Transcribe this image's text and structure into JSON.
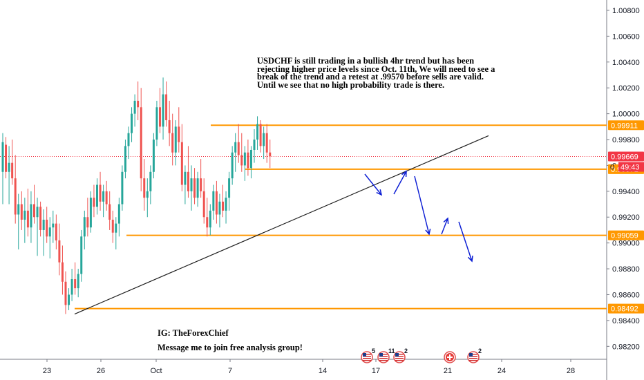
{
  "chart_data": {
    "type": "candlestick",
    "symbol": "USDCHF",
    "y_range": [
      0.981,
      1.0088
    ],
    "price_ticks": [
      "1.00800",
      "1.00600",
      "1.00400",
      "1.00200",
      "1.00000",
      "0.99800",
      "0.99600",
      "0.99400",
      "0.99200",
      "0.99000",
      "0.98800",
      "0.98600",
      "0.98400",
      "0.98200"
    ],
    "x_tick_labels": [
      "23",
      "26",
      "Oct",
      "7",
      "14",
      "17",
      "21",
      "24",
      "28"
    ],
    "horizontal_levels": [
      {
        "label": "0.99911",
        "value": 0.99911,
        "color": "#ff9800"
      },
      {
        "label": "0.99571",
        "value": 0.99571,
        "color": "#ff9800"
      },
      {
        "label": "0.99059",
        "value": 0.99059,
        "color": "#ff9800"
      },
      {
        "label": "0.98492",
        "value": 0.98492,
        "color": "#ff9800"
      }
    ],
    "current_price": {
      "label": "0.99669",
      "value": 0.99669,
      "color": "#f23645"
    },
    "countdown": "49:43",
    "colors": {
      "up": "#26a69a",
      "down": "#ef5350",
      "level": "#ff9800",
      "projection": "#0d1fd4",
      "trendline": "#1f1f1f"
    },
    "candles": [
      {
        "o": 0.9955,
        "h": 0.9985,
        "l": 0.993,
        "c": 0.9978
      },
      {
        "o": 0.9976,
        "h": 0.9982,
        "l": 0.995,
        "c": 0.9955
      },
      {
        "o": 0.9955,
        "h": 0.9975,
        "l": 0.993,
        "c": 0.9962
      },
      {
        "o": 0.9962,
        "h": 0.998,
        "l": 0.9945,
        "c": 0.995
      },
      {
        "o": 0.995,
        "h": 0.9968,
        "l": 0.9915,
        "c": 0.9922
      },
      {
        "o": 0.9922,
        "h": 0.9938,
        "l": 0.9895,
        "c": 0.993
      },
      {
        "o": 0.993,
        "h": 0.994,
        "l": 0.991,
        "c": 0.9918
      },
      {
        "o": 0.9918,
        "h": 0.9935,
        "l": 0.99,
        "c": 0.9925
      },
      {
        "o": 0.9925,
        "h": 0.9942,
        "l": 0.9905,
        "c": 0.9912
      },
      {
        "o": 0.9912,
        "h": 0.994,
        "l": 0.99,
        "c": 0.993
      },
      {
        "o": 0.993,
        "h": 0.9945,
        "l": 0.9915,
        "c": 0.992
      },
      {
        "o": 0.992,
        "h": 0.9935,
        "l": 0.989,
        "c": 0.9928
      },
      {
        "o": 0.9928,
        "h": 0.9932,
        "l": 0.9905,
        "c": 0.991
      },
      {
        "o": 0.991,
        "h": 0.9926,
        "l": 0.989,
        "c": 0.9918
      },
      {
        "o": 0.9918,
        "h": 0.9928,
        "l": 0.99,
        "c": 0.9905
      },
      {
        "o": 0.9905,
        "h": 0.992,
        "l": 0.9888,
        "c": 0.9912
      },
      {
        "o": 0.9912,
        "h": 0.9925,
        "l": 0.99,
        "c": 0.9915
      },
      {
        "o": 0.9915,
        "h": 0.9922,
        "l": 0.9895,
        "c": 0.9902
      },
      {
        "o": 0.9902,
        "h": 0.9915,
        "l": 0.9875,
        "c": 0.9885
      },
      {
        "o": 0.9885,
        "h": 0.9898,
        "l": 0.986,
        "c": 0.987
      },
      {
        "o": 0.987,
        "h": 0.9878,
        "l": 0.9845,
        "c": 0.9852
      },
      {
        "o": 0.9852,
        "h": 0.9865,
        "l": 0.9848,
        "c": 0.986
      },
      {
        "o": 0.986,
        "h": 0.988,
        "l": 0.9855,
        "c": 0.9872
      },
      {
        "o": 0.9872,
        "h": 0.9885,
        "l": 0.986,
        "c": 0.9865
      },
      {
        "o": 0.9865,
        "h": 0.988,
        "l": 0.9858,
        "c": 0.9876
      },
      {
        "o": 0.9876,
        "h": 0.991,
        "l": 0.987,
        "c": 0.9905
      },
      {
        "o": 0.9905,
        "h": 0.9925,
        "l": 0.9895,
        "c": 0.992
      },
      {
        "o": 0.992,
        "h": 0.9935,
        "l": 0.9905,
        "c": 0.9912
      },
      {
        "o": 0.9912,
        "h": 0.994,
        "l": 0.9908,
        "c": 0.9935
      },
      {
        "o": 0.9935,
        "h": 0.9945,
        "l": 0.992,
        "c": 0.9928
      },
      {
        "o": 0.9928,
        "h": 0.995,
        "l": 0.9922,
        "c": 0.9945
      },
      {
        "o": 0.9945,
        "h": 0.9955,
        "l": 0.9925,
        "c": 0.9932
      },
      {
        "o": 0.9932,
        "h": 0.9945,
        "l": 0.992,
        "c": 0.994
      },
      {
        "o": 0.994,
        "h": 0.9948,
        "l": 0.9925,
        "c": 0.993
      },
      {
        "o": 0.993,
        "h": 0.994,
        "l": 0.991,
        "c": 0.9918
      },
      {
        "o": 0.9918,
        "h": 0.9925,
        "l": 0.99,
        "c": 0.9908
      },
      {
        "o": 0.9908,
        "h": 0.992,
        "l": 0.9895,
        "c": 0.9915
      },
      {
        "o": 0.9915,
        "h": 0.9935,
        "l": 0.9905,
        "c": 0.993
      },
      {
        "o": 0.993,
        "h": 0.996,
        "l": 0.9925,
        "c": 0.9955
      },
      {
        "o": 0.9955,
        "h": 0.998,
        "l": 0.995,
        "c": 0.9975
      },
      {
        "o": 0.9975,
        "h": 0.999,
        "l": 0.9965,
        "c": 0.9985
      },
      {
        "o": 0.9985,
        "h": 1.0005,
        "l": 0.9978,
        "c": 1.0
      },
      {
        "o": 1.0,
        "h": 1.0015,
        "l": 0.999,
        "c": 1.001
      },
      {
        "o": 1.001,
        "h": 1.0025,
        "l": 0.9995,
        "c": 1.0005
      },
      {
        "o": 1.0005,
        "h": 1.002,
        "l": 0.994,
        "c": 0.995
      },
      {
        "o": 0.995,
        "h": 0.9965,
        "l": 0.9925,
        "c": 0.9935
      },
      {
        "o": 0.9935,
        "h": 0.995,
        "l": 0.992,
        "c": 0.994
      },
      {
        "o": 0.994,
        "h": 0.996,
        "l": 0.993,
        "c": 0.9955
      },
      {
        "o": 0.9955,
        "h": 0.9985,
        "l": 0.995,
        "c": 0.998
      },
      {
        "o": 0.998,
        "h": 1.001,
        "l": 0.9975,
        "c": 1.0005
      },
      {
        "o": 1.0005,
        "h": 1.002,
        "l": 0.9985,
        "c": 0.999
      },
      {
        "o": 0.999,
        "h": 1.0028,
        "l": 0.998,
        "c": 1.0015
      },
      {
        "o": 1.0015,
        "h": 1.0025,
        "l": 0.999,
        "c": 0.9995
      },
      {
        "o": 0.9995,
        "h": 1.001,
        "l": 0.9975,
        "c": 0.9985
      },
      {
        "o": 0.9985,
        "h": 1.0,
        "l": 0.996,
        "c": 0.997
      },
      {
        "o": 0.997,
        "h": 0.9995,
        "l": 0.996,
        "c": 0.999
      },
      {
        "o": 0.999,
        "h": 1.0005,
        "l": 0.997,
        "c": 0.9978
      },
      {
        "o": 0.9978,
        "h": 0.9992,
        "l": 0.994,
        "c": 0.9945
      },
      {
        "o": 0.9945,
        "h": 0.996,
        "l": 0.993,
        "c": 0.9955
      },
      {
        "o": 0.9955,
        "h": 0.9975,
        "l": 0.9935,
        "c": 0.994
      },
      {
        "o": 0.994,
        "h": 0.996,
        "l": 0.9925,
        "c": 0.995
      },
      {
        "o": 0.995,
        "h": 0.9958,
        "l": 0.993,
        "c": 0.9935
      },
      {
        "o": 0.9935,
        "h": 0.9955,
        "l": 0.9928,
        "c": 0.995
      },
      {
        "o": 0.995,
        "h": 0.9965,
        "l": 0.9935,
        "c": 0.994
      },
      {
        "o": 0.994,
        "h": 0.995,
        "l": 0.9915,
        "c": 0.992
      },
      {
        "o": 0.992,
        "h": 0.9935,
        "l": 0.9905,
        "c": 0.9912
      },
      {
        "o": 0.9912,
        "h": 0.993,
        "l": 0.9906,
        "c": 0.9925
      },
      {
        "o": 0.9925,
        "h": 0.9945,
        "l": 0.9918,
        "c": 0.994
      },
      {
        "o": 0.994,
        "h": 0.9948,
        "l": 0.9915,
        "c": 0.9922
      },
      {
        "o": 0.9922,
        "h": 0.9938,
        "l": 0.9912,
        "c": 0.9932
      },
      {
        "o": 0.9932,
        "h": 0.9945,
        "l": 0.992,
        "c": 0.9925
      },
      {
        "o": 0.9925,
        "h": 0.994,
        "l": 0.9915,
        "c": 0.9935
      },
      {
        "o": 0.9935,
        "h": 0.9955,
        "l": 0.9925,
        "c": 0.995
      },
      {
        "o": 0.995,
        "h": 0.9975,
        "l": 0.9945,
        "c": 0.997
      },
      {
        "o": 0.997,
        "h": 0.9985,
        "l": 0.9955,
        "c": 0.9978
      },
      {
        "o": 0.9978,
        "h": 0.9992,
        "l": 0.9962,
        "c": 0.9968
      },
      {
        "o": 0.9968,
        "h": 0.9985,
        "l": 0.9955,
        "c": 0.996
      },
      {
        "o": 0.996,
        "h": 0.9975,
        "l": 0.9948,
        "c": 0.997
      },
      {
        "o": 0.997,
        "h": 0.998,
        "l": 0.9952,
        "c": 0.9958
      },
      {
        "o": 0.9958,
        "h": 0.9975,
        "l": 0.995,
        "c": 0.9972
      },
      {
        "o": 0.9972,
        "h": 0.9988,
        "l": 0.9962,
        "c": 0.998
      },
      {
        "o": 0.998,
        "h": 0.9998,
        "l": 0.9972,
        "c": 0.9992
      },
      {
        "o": 0.9992,
        "h": 0.9995,
        "l": 0.997,
        "c": 0.9975
      },
      {
        "o": 0.9975,
        "h": 0.999,
        "l": 0.9965,
        "c": 0.9985
      },
      {
        "o": 0.9985,
        "h": 0.9992,
        "l": 0.9962,
        "c": 0.997
      },
      {
        "o": 0.997,
        "h": 0.998,
        "l": 0.9958,
        "c": 0.9967
      }
    ],
    "trendline": [
      {
        "i": 0,
        "price": 0.9845,
        "start_index": 19
      },
      {
        "i": 1,
        "price": 0.9983,
        "start_index": 97
      }
    ],
    "projection_arrows": [
      {
        "from": [
          0,
          0.99555
        ],
        "to": [
          3,
          0.9944
        ]
      },
      {
        "from": [
          3.7,
          0.9945
        ],
        "to": [
          5.5,
          0.9956
        ]
      },
      {
        "from": [
          6.4,
          0.9952
        ],
        "to": [
          8.9,
          0.9907
        ]
      },
      {
        "from": [
          9.6,
          0.991
        ],
        "to": [
          10.8,
          0.9922
        ]
      },
      {
        "from": [
          11.7,
          0.992
        ],
        "to": [
          13.5,
          0.9886
        ]
      }
    ]
  },
  "annotation": {
    "lines": [
      "USDCHF is still trading in a bullish 4hr trend but has been",
      "rejecting higher price levels since Oct. 11th, We will need to see a",
      "break of the trend and a retest at .99570 before sells are valid.",
      "Until we see that no high probability trade is there."
    ],
    "ig": "IG: TheForexChief",
    "message": "Message me to join free analysis group!"
  },
  "events": [
    {
      "icon": "us-flag-icon",
      "count": "5"
    },
    {
      "icon": "us-flag-icon",
      "count": "11"
    },
    {
      "icon": "us-flag-icon",
      "count": "2"
    },
    {
      "icon": "swiss-flag-icon",
      "count": ""
    },
    {
      "icon": "us-flag-icon",
      "count": "2"
    }
  ],
  "axis_prefix_glyph": "0"
}
